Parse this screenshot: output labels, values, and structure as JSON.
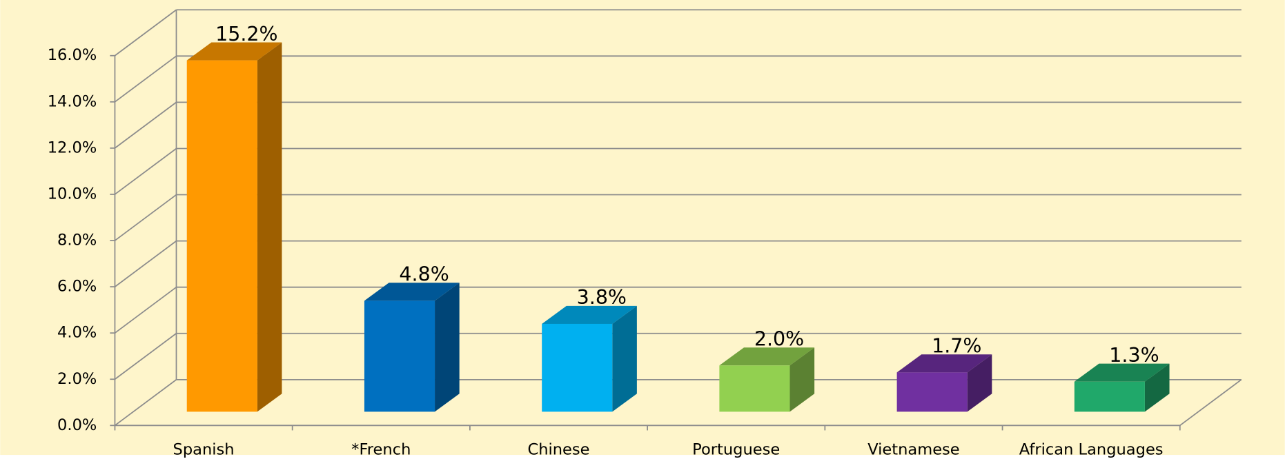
{
  "chart_data": {
    "type": "bar3d",
    "categories": [
      "Spanish",
      "*French",
      "Chinese",
      "Portuguese",
      "Vietnamese",
      "African Languages"
    ],
    "values": [
      15.2,
      4.8,
      3.8,
      2.0,
      1.7,
      1.3
    ],
    "value_labels": [
      "15.2%",
      "4.8%",
      "3.8%",
      "2.0%",
      "1.7%",
      "1.3%"
    ],
    "colors": [
      "#ff9900",
      "#0070c0",
      "#00b0f0",
      "#92d050",
      "#7030a0",
      "#20a86a"
    ],
    "ylim": [
      0,
      16
    ],
    "yticks": [
      {
        "value": 0,
        "label": "0.0%"
      },
      {
        "value": 2,
        "label": "2.0%"
      },
      {
        "value": 4,
        "label": "4.0%"
      },
      {
        "value": 6,
        "label": "6.0%"
      },
      {
        "value": 8,
        "label": "8.0%"
      },
      {
        "value": 10,
        "label": "10.0%"
      },
      {
        "value": 12,
        "label": "12.0%"
      },
      {
        "value": 14,
        "label": "14.0%"
      },
      {
        "value": 16,
        "label": "16.0%"
      }
    ],
    "grid": true
  }
}
